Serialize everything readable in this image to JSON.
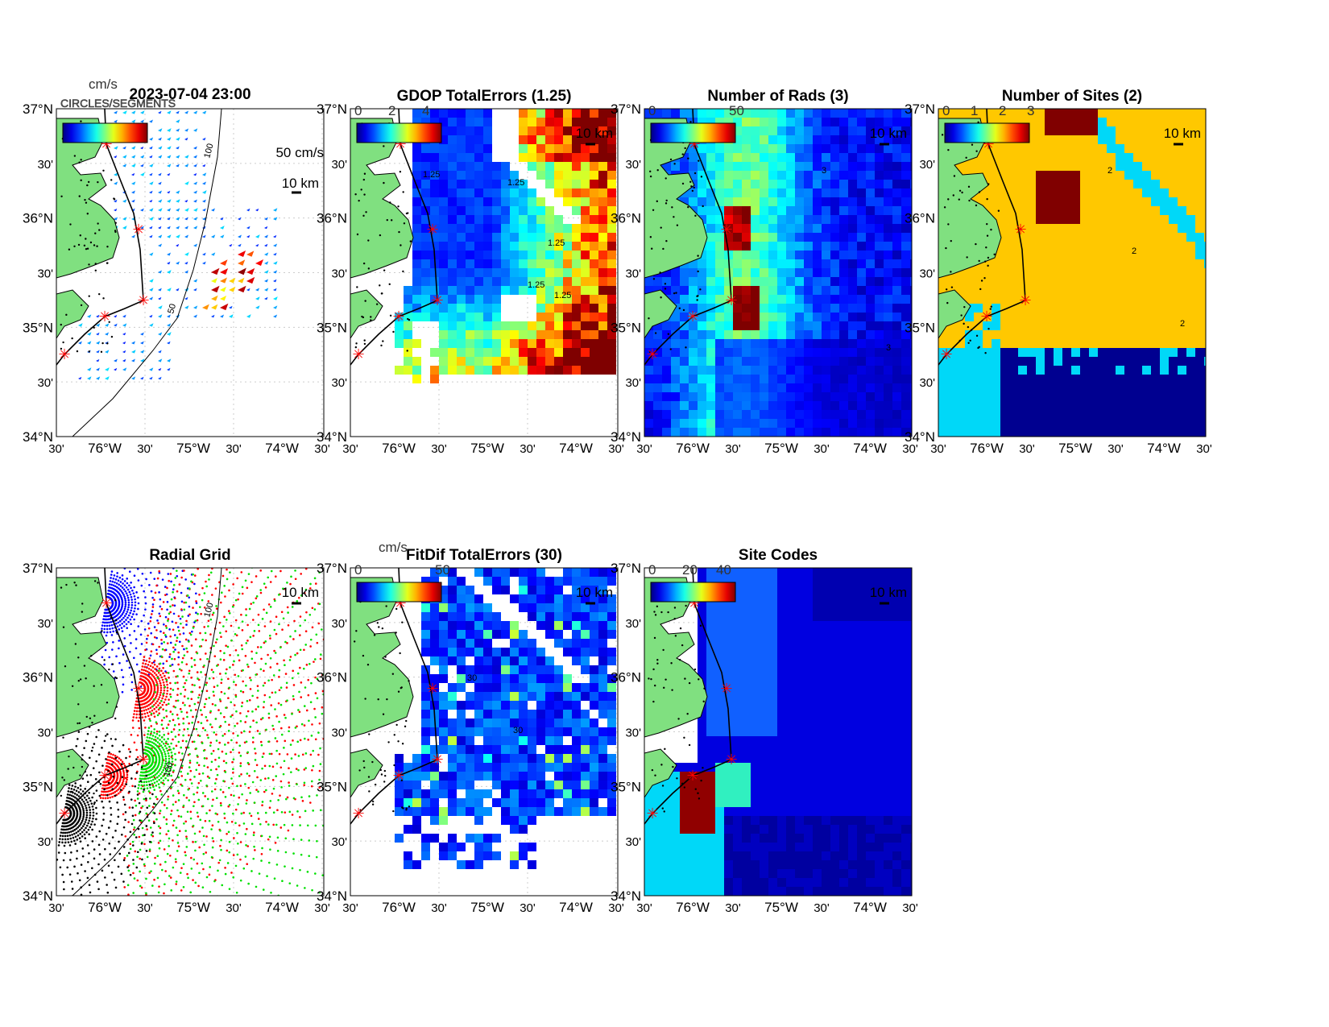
{
  "figure": {
    "timestamp": "2023-07-04 23:00",
    "colorbar_garbled_label": "CIRCLES/SEGMENTS"
  },
  "axes": {
    "lat_labels": [
      "37°N",
      "30'",
      "36°N",
      "30'",
      "35°N",
      "30'",
      "34°N"
    ],
    "lon_labels": [
      "30'",
      "76°W",
      "30'",
      "75°W",
      "30'",
      "74°W",
      "30'"
    ]
  },
  "chart_data": [
    {
      "type": "quiver",
      "title": "2023-07-04 23:00",
      "colorbar_unit": "cm/s",
      "colorbar_ticks": [],
      "scale_vector_label": "50 cm/s",
      "scale_bar_label": "10 km",
      "contour_labels": [
        "100",
        "50"
      ],
      "xlim": [
        -76.5,
        -73.5
      ],
      "ylim": [
        34,
        37
      ]
    },
    {
      "type": "heatmap",
      "title": "GDOP TotalErrors (1.25)",
      "colorbar_ticks": [
        "0",
        "2",
        "4"
      ],
      "clim": [
        0,
        5
      ],
      "scale_bar_label": "10 km",
      "contour_labels": [
        "1.25",
        "1.25",
        "1.25",
        "1.25",
        "1.25"
      ],
      "xlim": [
        -76.5,
        -73.5
      ],
      "ylim": [
        34,
        37
      ]
    },
    {
      "type": "heatmap",
      "title": "Number of Rads (3)",
      "colorbar_ticks": [
        "0",
        "50"
      ],
      "clim": [
        0,
        100
      ],
      "scale_bar_label": "10 km",
      "contour_labels": [
        "3",
        "3"
      ],
      "xlim": [
        -76.5,
        -73.5
      ],
      "ylim": [
        34,
        37
      ]
    },
    {
      "type": "heatmap",
      "title": "Number of Sites (2)",
      "colorbar_ticks": [
        "0",
        "1",
        "2",
        "3"
      ],
      "clim": [
        0,
        3
      ],
      "scale_bar_label": "10 km",
      "contour_labels": [
        "2",
        "2",
        "2"
      ],
      "xlim": [
        -76.5,
        -73.5
      ],
      "ylim": [
        34,
        37
      ]
    },
    {
      "type": "scatter",
      "title": "Radial Grid",
      "scale_bar_label": "10 km",
      "contour_labels": [
        "100",
        "100"
      ],
      "xlim": [
        -76.5,
        -73.5
      ],
      "ylim": [
        34,
        37
      ]
    },
    {
      "type": "heatmap",
      "title": "FitDif TotalErrors (30)",
      "colorbar_unit": "cm/s",
      "colorbar_ticks": [
        "0",
        "50"
      ],
      "clim": [
        0,
        100
      ],
      "scale_bar_label": "10 km",
      "contour_labels": [
        "30",
        "30"
      ],
      "xlim": [
        -76.5,
        -73.5
      ],
      "ylim": [
        34,
        37
      ]
    },
    {
      "type": "heatmap",
      "title": "Site Codes",
      "colorbar_ticks": [
        "0",
        "20",
        "40"
      ],
      "clim": [
        0,
        50
      ],
      "scale_bar_label": "10 km",
      "xlim": [
        -76.5,
        -73.5
      ],
      "ylim": [
        34,
        37
      ]
    }
  ],
  "colors": {
    "land": "#80e080",
    "site": "#ff0000",
    "coast": "#000000"
  }
}
